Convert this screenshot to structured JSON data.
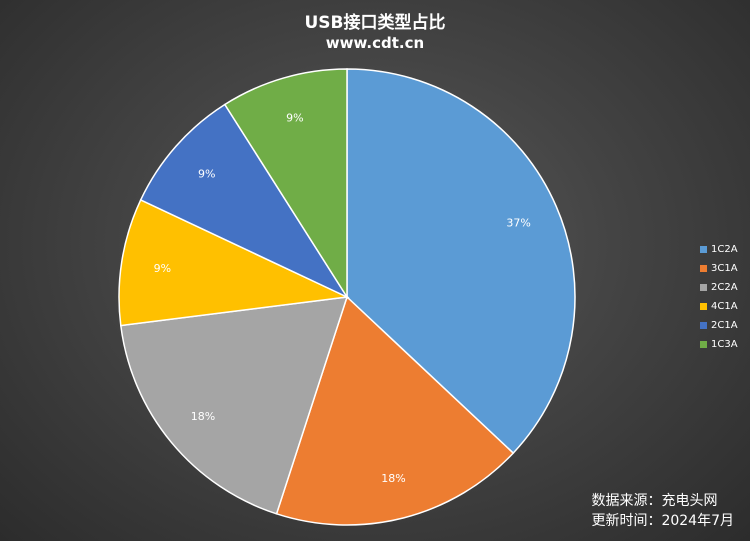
{
  "chart_data": {
    "type": "pie",
    "title": "USB接口类型占比",
    "subtitle": "www.cdt.cn",
    "categories": [
      "1C2A",
      "3C1A",
      "2C2A",
      "4C1A",
      "2C1A",
      "1C3A"
    ],
    "values": [
      37,
      18,
      18,
      9,
      9,
      9
    ],
    "labels": [
      "37%",
      "18%",
      "18%",
      "9%",
      "9%",
      "9%"
    ],
    "colors": [
      "#5B9BD5",
      "#ED7D31",
      "#A5A5A5",
      "#FFC000",
      "#4472C4",
      "#70AD47"
    ],
    "legend_position": "right"
  },
  "footer": {
    "source": "数据来源：充电头网",
    "updated": "更新时间：2024年7月"
  }
}
